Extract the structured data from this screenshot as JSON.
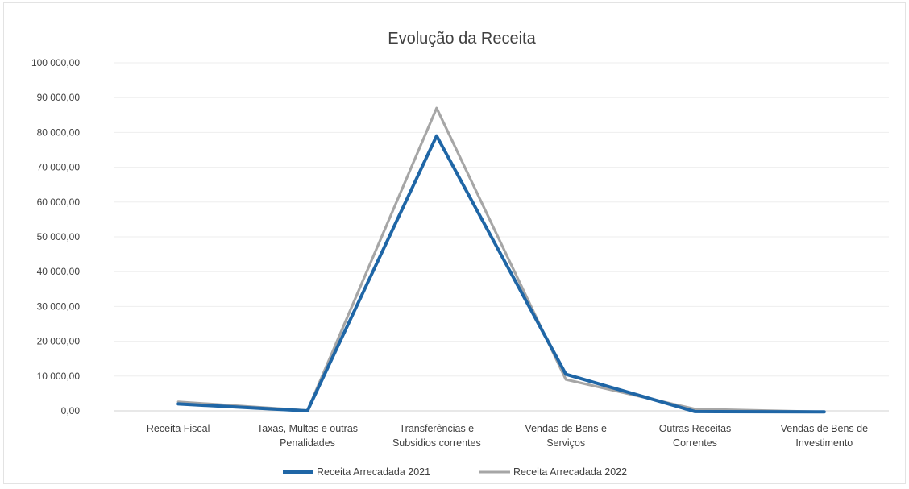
{
  "chart_data": {
    "type": "line",
    "title": "Evolução da Receita",
    "xlabel": "",
    "ylabel": "",
    "categories": [
      [
        "Receita Fiscal"
      ],
      [
        "Taxas, Multas e outras",
        "Penalidades"
      ],
      [
        "Transferências e",
        "Subsidios correntes"
      ],
      [
        "Vendas de Bens e",
        "Serviços"
      ],
      [
        "Outras Receitas",
        "Correntes"
      ],
      [
        "Vendas de Bens de",
        "Investimento"
      ]
    ],
    "series": [
      {
        "name": "Receita Arrecadada 2021",
        "color": "#1f66a6",
        "values": [
          2000,
          0,
          79000,
          10500,
          -200,
          -300
        ]
      },
      {
        "name": "Receita Arrecadada 2022",
        "color": "#a6a6a6",
        "values": [
          2600,
          100,
          87000,
          9000,
          500,
          -300
        ]
      }
    ],
    "ylim": [
      0,
      100000
    ],
    "yticks": [
      "0,00",
      "10 000,00",
      "20 000,00",
      "30 000,00",
      "40 000,00",
      "50 000,00",
      "60 000,00",
      "70 000,00",
      "80 000,00",
      "90 000,00",
      "100 000,00"
    ],
    "grid": true,
    "legend_position": "bottom"
  }
}
